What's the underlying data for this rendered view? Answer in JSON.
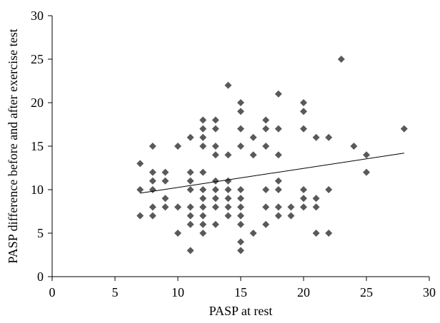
{
  "chart_data": {
    "type": "scatter",
    "title": "",
    "xlabel": "PASP at rest",
    "ylabel": "PASP difference before and after exercise test",
    "xlim": [
      0,
      30
    ],
    "ylim": [
      0,
      30
    ],
    "xticks": [
      0,
      5,
      10,
      15,
      20,
      25,
      30
    ],
    "yticks": [
      0,
      5,
      10,
      15,
      20,
      25,
      30
    ],
    "grid": false,
    "legend": "none",
    "marker": "diamond",
    "marker_color": "#595959",
    "trendline": {
      "type": "linear",
      "x": [
        7,
        28
      ],
      "y": [
        9.6,
        14.2
      ],
      "color": "#000000"
    },
    "points": [
      {
        "x": 7,
        "y": 13
      },
      {
        "x": 7,
        "y": 10
      },
      {
        "x": 7,
        "y": 7
      },
      {
        "x": 8,
        "y": 15
      },
      {
        "x": 8,
        "y": 12
      },
      {
        "x": 8,
        "y": 11
      },
      {
        "x": 8,
        "y": 10
      },
      {
        "x": 8,
        "y": 8
      },
      {
        "x": 8,
        "y": 7
      },
      {
        "x": 9,
        "y": 12
      },
      {
        "x": 9,
        "y": 11
      },
      {
        "x": 9,
        "y": 9
      },
      {
        "x": 9,
        "y": 8
      },
      {
        "x": 10,
        "y": 15
      },
      {
        "x": 10,
        "y": 8
      },
      {
        "x": 10,
        "y": 5
      },
      {
        "x": 11,
        "y": 16
      },
      {
        "x": 11,
        "y": 12
      },
      {
        "x": 11,
        "y": 11
      },
      {
        "x": 11,
        "y": 10
      },
      {
        "x": 11,
        "y": 8
      },
      {
        "x": 11,
        "y": 7
      },
      {
        "x": 11,
        "y": 6
      },
      {
        "x": 11,
        "y": 3
      },
      {
        "x": 12,
        "y": 18
      },
      {
        "x": 12,
        "y": 17
      },
      {
        "x": 12,
        "y": 16
      },
      {
        "x": 12,
        "y": 15
      },
      {
        "x": 12,
        "y": 12
      },
      {
        "x": 12,
        "y": 10
      },
      {
        "x": 12,
        "y": 9
      },
      {
        "x": 12,
        "y": 8
      },
      {
        "x": 12,
        "y": 7
      },
      {
        "x": 12,
        "y": 6
      },
      {
        "x": 12,
        "y": 5
      },
      {
        "x": 13,
        "y": 18
      },
      {
        "x": 13,
        "y": 17
      },
      {
        "x": 13,
        "y": 15
      },
      {
        "x": 13,
        "y": 14
      },
      {
        "x": 13,
        "y": 11
      },
      {
        "x": 13,
        "y": 10
      },
      {
        "x": 13,
        "y": 9
      },
      {
        "x": 13,
        "y": 8
      },
      {
        "x": 13,
        "y": 6
      },
      {
        "x": 14,
        "y": 22
      },
      {
        "x": 14,
        "y": 14
      },
      {
        "x": 14,
        "y": 11
      },
      {
        "x": 14,
        "y": 10
      },
      {
        "x": 14,
        "y": 9
      },
      {
        "x": 14,
        "y": 8
      },
      {
        "x": 14,
        "y": 7
      },
      {
        "x": 15,
        "y": 20
      },
      {
        "x": 15,
        "y": 19
      },
      {
        "x": 15,
        "y": 17
      },
      {
        "x": 15,
        "y": 15
      },
      {
        "x": 15,
        "y": 10
      },
      {
        "x": 15,
        "y": 9
      },
      {
        "x": 15,
        "y": 8
      },
      {
        "x": 15,
        "y": 7
      },
      {
        "x": 15,
        "y": 6
      },
      {
        "x": 15,
        "y": 4
      },
      {
        "x": 15,
        "y": 3
      },
      {
        "x": 16,
        "y": 16
      },
      {
        "x": 16,
        "y": 14
      },
      {
        "x": 16,
        "y": 5
      },
      {
        "x": 17,
        "y": 18
      },
      {
        "x": 17,
        "y": 17
      },
      {
        "x": 17,
        "y": 15
      },
      {
        "x": 17,
        "y": 10
      },
      {
        "x": 17,
        "y": 8
      },
      {
        "x": 17,
        "y": 6
      },
      {
        "x": 18,
        "y": 21
      },
      {
        "x": 18,
        "y": 17
      },
      {
        "x": 18,
        "y": 14
      },
      {
        "x": 18,
        "y": 11
      },
      {
        "x": 18,
        "y": 10
      },
      {
        "x": 18,
        "y": 8
      },
      {
        "x": 18,
        "y": 7
      },
      {
        "x": 19,
        "y": 8
      },
      {
        "x": 19,
        "y": 7
      },
      {
        "x": 20,
        "y": 20
      },
      {
        "x": 20,
        "y": 19
      },
      {
        "x": 20,
        "y": 17
      },
      {
        "x": 20,
        "y": 10
      },
      {
        "x": 20,
        "y": 9
      },
      {
        "x": 20,
        "y": 8
      },
      {
        "x": 21,
        "y": 16
      },
      {
        "x": 21,
        "y": 9
      },
      {
        "x": 21,
        "y": 8
      },
      {
        "x": 21,
        "y": 5
      },
      {
        "x": 22,
        "y": 16
      },
      {
        "x": 22,
        "y": 10
      },
      {
        "x": 22,
        "y": 5
      },
      {
        "x": 23,
        "y": 25
      },
      {
        "x": 24,
        "y": 15
      },
      {
        "x": 25,
        "y": 14
      },
      {
        "x": 25,
        "y": 12
      },
      {
        "x": 28,
        "y": 17
      }
    ]
  }
}
